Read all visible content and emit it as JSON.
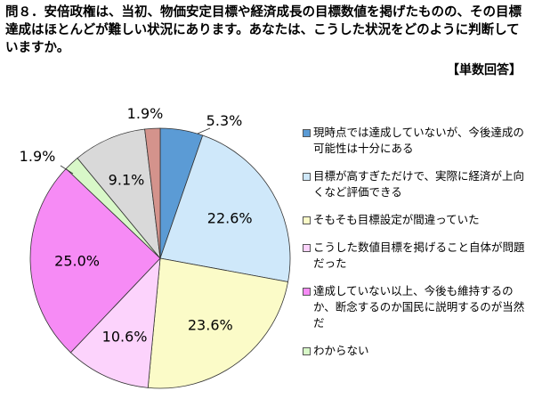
{
  "question": {
    "text": "問８．安倍政権は、当初、物価安定目標や経済成長の目標数値を掲げたものの、その目標達成はほとんどが難しい状況にあります。あなたは、こうした状況をどのように判断していますか。",
    "note": "【単数回答】"
  },
  "chart_data": {
    "type": "pie",
    "start_angle": "12 o'clock",
    "direction": "clockwise",
    "slices": [
      {
        "label": "現時点では達成していないが、今後達成の可能性は十分にある",
        "value": 5.3,
        "value_label": "5.3%",
        "color": "#5b9bd5"
      },
      {
        "label": "目標が高すぎただけで、実際に経済が上向くなど評価できる",
        "value": 22.6,
        "value_label": "22.6%",
        "color": "#cfe8fa"
      },
      {
        "label": "そもそも目標設定が間違っていた",
        "value": 23.6,
        "value_label": "23.6%",
        "color": "#fbfbc8"
      },
      {
        "label": "こうした数値目標を掲げること自体が問題だった",
        "value": 10.6,
        "value_label": "10.6%",
        "color": "#fcd3fc"
      },
      {
        "label": "達成していない以上、今後も維持するのか、断念するのか国民に説明するのが当然だ",
        "value": 25.0,
        "value_label": "25.0%",
        "color": "#f68bf5"
      },
      {
        "label": "わからない",
        "value": 1.9,
        "value_label": "1.9%",
        "color": "#d8f8c8"
      },
      {
        "label": "",
        "value": 9.1,
        "value_label": "9.1%",
        "color": "#d9d9d9"
      },
      {
        "label": "",
        "value": 1.9,
        "value_label": "1.9%",
        "color": "#d4938c"
      }
    ]
  }
}
